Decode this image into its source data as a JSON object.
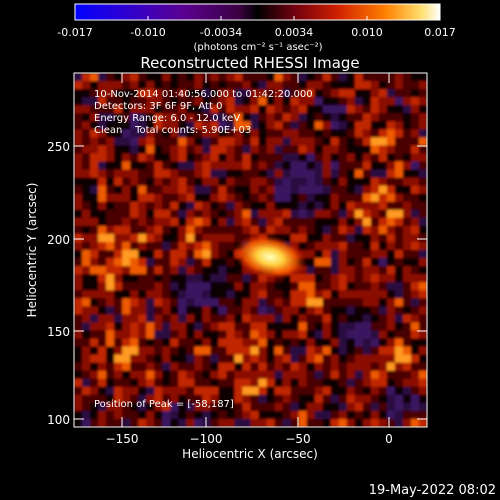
{
  "colorbar": {
    "tick_labels": [
      "-0.017",
      "-0.010",
      "-0.0034",
      "0.0034",
      "0.010",
      "0.017"
    ],
    "unit_label": "(photons cm⁻² s⁻¹ asec⁻²)"
  },
  "title": "Reconstructed RHESSI Image",
  "info": {
    "line1": "10-Nov-2014 01:40:56.000 to 01:42:20.000",
    "line2": "Detectors: 3F 6F 9F, Att 0",
    "line3": "Energy Range: 6.0 - 12.0 keV",
    "line4": "Clean    Total counts: 5.90E+03"
  },
  "peak_text": "Position of Peak = [-58,187]",
  "axes": {
    "xlabel": "Heliocentric X (arcsec)",
    "ylabel": "Heliocentric Y (arcsec)",
    "x_ticks": [
      "−150",
      "−100",
      "−50",
      "0"
    ],
    "y_ticks": [
      "250",
      "200",
      "150",
      "100"
    ]
  },
  "timestamp": "19-May-2022 08:02",
  "chart_data": {
    "type": "heatmap",
    "title": "Reconstructed RHESSI Image",
    "xlabel": "Heliocentric X (arcsec)",
    "ylabel": "Heliocentric Y (arcsec)",
    "xlim": [
      -173,
      19
    ],
    "ylim": [
      99,
      292
    ],
    "peak": {
      "x": -58,
      "y": 187
    },
    "colorscale_range": [
      -0.017,
      0.017
    ]
  }
}
